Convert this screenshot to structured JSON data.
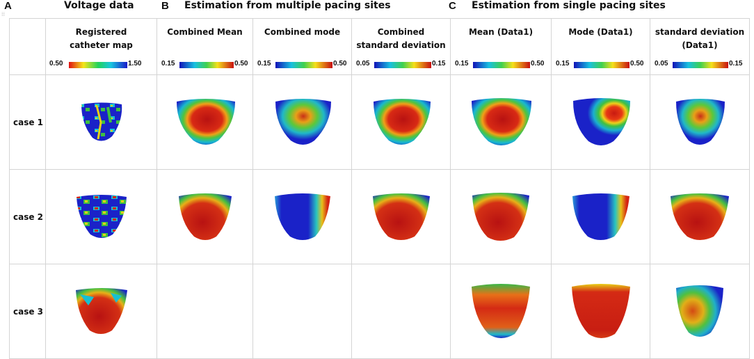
{
  "sections": {
    "a": {
      "letter": "A",
      "title": "Voltage data"
    },
    "b": {
      "letter": "B",
      "title": "Estimation from multiple pacing sites"
    },
    "c": {
      "letter": "C",
      "title": "Estimation from single pacing sites"
    }
  },
  "columns": [
    {
      "title": "Registered catheter map",
      "line1": "Registered",
      "line2": "catheter map",
      "cmin": "0.50",
      "cmax": "1.50",
      "scale": "red-blue"
    },
    {
      "title": "Combined Mean",
      "line1": "Combined Mean",
      "line2": "",
      "cmin": "0.15",
      "cmax": "0.50",
      "scale": "blue-red"
    },
    {
      "title": "Combined mode",
      "line1": "Combined mode",
      "line2": "",
      "cmin": "0.15",
      "cmax": "0.50",
      "scale": "blue-red"
    },
    {
      "title": "Combined standard deviation",
      "line1": "Combined",
      "line2": "standard deviation",
      "cmin": "0.05",
      "cmax": "0.15",
      "scale": "blue-red"
    },
    {
      "title": "Mean (Data1)",
      "line1": "Mean (Data1)",
      "line2": "",
      "cmin": "0.15",
      "cmax": "0.50",
      "scale": "blue-red"
    },
    {
      "title": "Mode (Data1)",
      "line1": "Mode (Data1)",
      "line2": "",
      "cmin": "0.15",
      "cmax": "0.50",
      "scale": "blue-red"
    },
    {
      "title": "standard deviation (Data1)",
      "line1": "standard deviation",
      "line2": "(Data1)",
      "cmin": "0.05",
      "cmax": "0.15",
      "scale": "blue-red"
    }
  ],
  "rows": [
    {
      "label": "case 1",
      "maps": [
        "catheter-narrow",
        "mean-center",
        "mode-center",
        "sd-center",
        "mean-center",
        "mode-right",
        "sd-small"
      ]
    },
    {
      "label": "case 2",
      "maps": [
        "catheter-wide",
        "mean-wide",
        "mode-blue",
        "sd-wide",
        "mean-wide2",
        "mode-blue",
        "sd-wide"
      ]
    },
    {
      "label": "case 3",
      "maps": [
        "catheter-top",
        "",
        "",
        "",
        "mean-case3",
        "mode-case3",
        "sd-case3"
      ]
    }
  ],
  "colors": {
    "blue": "#1a22c8",
    "cyan": "#18c6d8",
    "green": "#3fbf3a",
    "yellow": "#f2e619",
    "orange": "#f28a12",
    "red": "#d42414",
    "darkred": "#a81010"
  }
}
